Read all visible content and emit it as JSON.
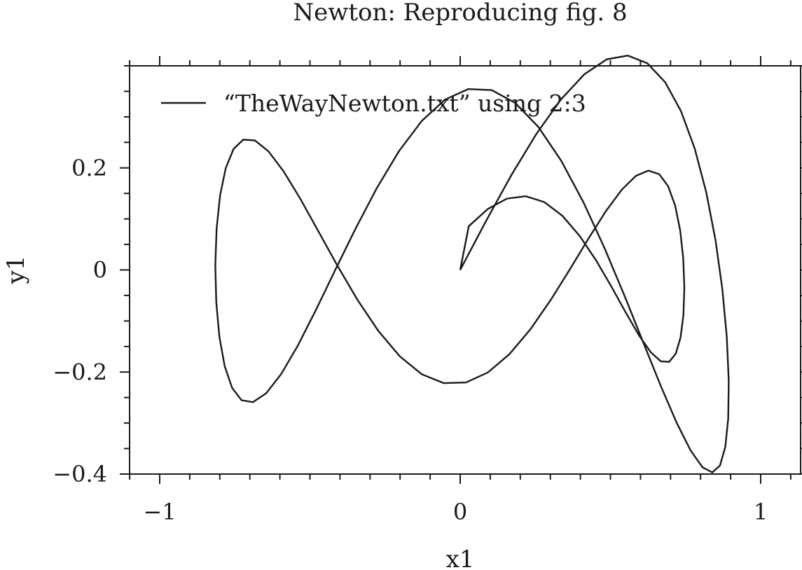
{
  "chart_data": {
    "type": "line",
    "title": "Newton: Reproducing fig. 8",
    "xlabel": "x1",
    "ylabel": "y1",
    "xlim": [
      -1.1,
      1.1
    ],
    "ylim": [
      -0.4,
      0.4
    ],
    "xticks": [
      -1,
      0,
      1
    ],
    "xtick_labels": [
      "−1",
      "0",
      "1"
    ],
    "xminor_step": 0.1,
    "yticks": [
      -0.4,
      -0.2,
      0,
      0.2
    ],
    "ytick_labels": [
      "−0.4",
      "−0.2",
      "0",
      "0.2"
    ],
    "yminor_step": 0.05,
    "grid": false,
    "legend_position": "top-left",
    "series": [
      {
        "name": "“TheWayNewton.txt” using 2:3",
        "color": "#1a1a1a",
        "x": [
          0,
          0.0856,
          0.1706,
          0.2541,
          0.3354,
          0.4136,
          0.4881,
          0.5581,
          0.623,
          0.682,
          0.7347,
          0.7805,
          0.8189,
          0.8497,
          0.8725,
          0.8872,
          0.8937,
          0.892,
          0.8822,
          0.8645,
          0.8391,
          0.8064,
          0.7667,
          0.7205,
          0.6682,
          0.6104,
          0.5477,
          0.4807,
          0.4101,
          0.3365,
          0.2607,
          0.1834,
          0.1052,
          0.027,
          -0.0508,
          -0.1278,
          -0.2034,
          -0.277,
          -0.348,
          -0.4159,
          -0.4802,
          -0.5402,
          -0.5954,
          -0.6453,
          -0.6895,
          -0.7276,
          -0.7591,
          -0.7838,
          -0.8014,
          -0.8118,
          -0.8149,
          -0.8106,
          -0.799,
          -0.7802,
          -0.7544,
          -0.7219,
          -0.6831,
          -0.6382,
          -0.5879,
          -0.5325,
          -0.4727,
          -0.4089,
          -0.3419,
          -0.2723,
          -0.2008,
          -0.1279,
          -0.0544,
          0.0191,
          0.0922,
          0.1641,
          0.2343,
          0.3021,
          0.3669,
          0.4281,
          0.4851,
          0.5375,
          0.5847,
          0.6264,
          0.6623,
          0.692,
          0.7154,
          0.7322,
          0.7424,
          0.746,
          0.743,
          0.7334,
          0.7175,
          0.6955,
          0.6676,
          0.6341,
          0.5954,
          0.552,
          0.5043,
          0.4528,
          0.3979,
          0.3402,
          0.2802,
          0.2185,
          0.1556,
          0.0921,
          0.0285
        ],
        "y": [
          0,
          0.0955,
          0.1861,
          0.2671,
          0.3341,
          0.3836,
          0.4128,
          0.4201,
          0.4049,
          0.368,
          0.3113,
          0.238,
          0.152,
          0.0584,
          -0.0377,
          -0.1313,
          -0.2173,
          -0.2907,
          -0.3472,
          -0.3833,
          -0.3968,
          -0.3867,
          -0.3536,
          -0.2996,
          -0.2282,
          -0.1438,
          -0.0518,
          0.0423,
          0.1327,
          0.2137,
          0.2799,
          0.3271,
          0.3524,
          0.3545,
          0.3337,
          0.2921,
          0.233,
          0.1609,
          0.0812,
          -0.0002,
          -0.0786,
          -0.1481,
          -0.2037,
          -0.2415,
          -0.259,
          -0.2553,
          -0.231,
          -0.1883,
          -0.1308,
          -0.063,
          0.0095,
          0.0812,
          0.1463,
          0.1996,
          0.2369,
          0.2554,
          0.2538,
          0.2325,
          0.1934,
          0.1399,
          0.0766,
          0.0087,
          -0.0585,
          -0.1195,
          -0.1694,
          -0.2044,
          -0.2218,
          -0.2205,
          -0.2009,
          -0.1649,
          -0.1158,
          -0.0581,
          0.0031,
          0.0626,
          0.1154,
          0.1571,
          0.1843,
          0.1947,
          0.1877,
          0.1641,
          0.1262,
          0.0773,
          0.022,
          -0.0347,
          -0.0877,
          -0.1322,
          -0.164,
          -0.1801,
          -0.179,
          -0.1612,
          -0.1285,
          -0.0845,
          -0.0337,
          0.0183,
          0.0665,
          0.1061,
          0.1329,
          0.1445,
          0.1398,
          0.1195,
          0.0857
        ]
      }
    ]
  }
}
